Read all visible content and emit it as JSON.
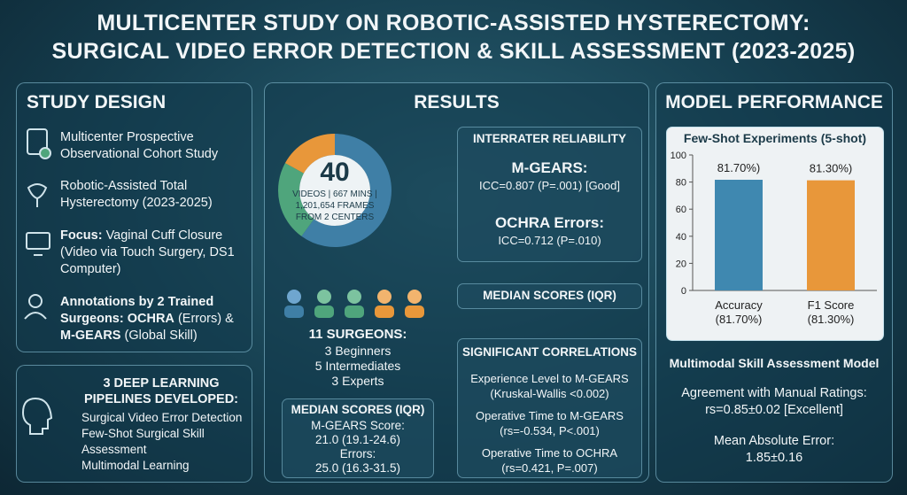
{
  "header": {
    "title": [
      "MULTICENTER STUDY ON ROBOTIC-ASSISTED HYSTERECTOMY:",
      "SURGICAL VIDEO ERROR DETECTION & SKILL ASSESSMENT (2023-2025)"
    ]
  },
  "study_design": {
    "heading": "STUDY DESIGN",
    "items": [
      [
        {
          "text": "Multicenter Prospective Observational Cohort Study",
          "bold": false
        }
      ],
      [
        {
          "text": "Robotic-Assisted Total Hysterectomy (2023-2025)",
          "bold": false
        }
      ],
      [
        {
          "text": "Focus:",
          "bold": true
        },
        {
          "text": "Vaginal Cuff Closure (Video via Touch Surgery, DS1 Computer)",
          "bold": false
        }
      ],
      [
        {
          "text": "Annotations by 2 Trained Surgeons: OCHRA",
          "bold": true
        },
        {
          "text": "(Errors) &",
          "bold": false
        },
        {
          "text": "M-GEARS",
          "bold": true
        },
        {
          "text": "(Global Skill)",
          "bold": false
        }
      ]
    ]
  },
  "pipelines": {
    "heading": "3 DEEP LEARNING PIPELINES DEVELOPED:",
    "lines": [
      "Surgical Video Error Detection",
      "Few-Shot Surgical Skill Assessment",
      "Multimodal Learning"
    ]
  },
  "results": {
    "heading": "RESULTS",
    "donut": {
      "values": [
        60,
        23,
        17
      ],
      "colors": [
        "#3f7fa6",
        "#4fa57c",
        "#e8973a"
      ],
      "center": "40",
      "center_lines": [
        "VIDEOS | 667 MINS |",
        "1,201,654 FRAMES",
        "FROM 2 CENTERS"
      ]
    },
    "surgeons": {
      "heading": "11 SURGEONS:",
      "lines": [
        "3 Beginners",
        "5 Intermediates",
        "3 Experts"
      ]
    },
    "median_scores": {
      "heading": "MEDIAN SCORES (IQR)",
      "lines": [
        "M-GEARS Score:",
        "21.0 (19.1-24.6)",
        "Errors:",
        "25.0 (16.3-31.5)"
      ]
    },
    "interrater": {
      "heading": "INTERRATER RELIABILITY",
      "items": [
        {
          "label": "M-GEARS:",
          "value": "ICC=0.807 (P=.001) [Good]"
        },
        {
          "label": "OCHRA Errors:",
          "value": "ICC=0.712 (P=.010)"
        }
      ]
    },
    "median_box": "MEDIAN SCORES (IQR)",
    "correlations": {
      "heading": "SIGNIFICANT CORRELATIONS",
      "items": [
        [
          "Experience Level to M-GEARS",
          "(Kruskal-Wallis <0.002)"
        ],
        [
          "Operative Time to M-GEARS",
          "(rs=-0.534, P<.001)"
        ],
        [
          "Operative Time to OCHRA",
          "(rs=0.421, P=.007)"
        ]
      ]
    }
  },
  "model": {
    "heading": "MODEL PERFORMANCE",
    "chart": {
      "type": "bar",
      "title": "Few-Shot Experiments (5-shot)",
      "categories": [
        [
          "Accuracy",
          "(81.70%)"
        ],
        [
          "F1 Score",
          "(81.30%)"
        ]
      ],
      "values": [
        81.7,
        81.3
      ],
      "value_labels": [
        "81.70%)",
        "81.30%)"
      ],
      "colors": [
        "#3f88b0",
        "#e8973a"
      ],
      "ylim": [
        0,
        100
      ],
      "yticks": [
        0,
        20,
        40,
        60,
        80,
        100
      ]
    },
    "multimodal": {
      "heading": "Multimodal Skill Assessment Model",
      "lines": [
        "Agreement with Manual Ratings:",
        "rs=0.85±0.02 [Excellent]",
        "Mean Absolute Error:",
        "1.85±0.16"
      ]
    }
  }
}
